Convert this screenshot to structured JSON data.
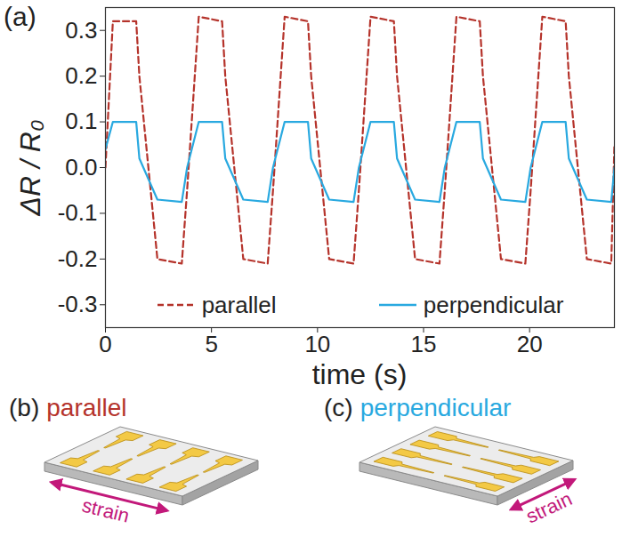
{
  "chart_data": {
    "type": "line",
    "panel": "(a)",
    "x_label": "time (s)",
    "y_label": "ΔR / R₀",
    "x": [
      0,
      0.35,
      1.45,
      1.6,
      2.45,
      3.6,
      3.85,
      4.4,
      5.5,
      5.65,
      6.5,
      7.65,
      7.9,
      8.45,
      9.55,
      9.7,
      10.55,
      11.7,
      11.95,
      12.5,
      13.6,
      13.75,
      14.6,
      15.75,
      16.0,
      16.55,
      17.65,
      17.8,
      18.65,
      19.8,
      20.05,
      20.6,
      21.7,
      21.85,
      22.7,
      23.85,
      24.0
    ],
    "series": [
      {
        "name": "parallel",
        "color": "#b5332b",
        "line_style": "dashed",
        "values": [
          0.0,
          0.32,
          0.32,
          0.2,
          -0.2,
          -0.21,
          -0.05,
          0.33,
          0.32,
          0.2,
          -0.2,
          -0.21,
          -0.05,
          0.33,
          0.32,
          0.2,
          -0.2,
          -0.21,
          -0.05,
          0.33,
          0.32,
          0.2,
          -0.2,
          -0.21,
          -0.05,
          0.33,
          0.32,
          0.2,
          -0.2,
          -0.21,
          -0.05,
          0.33,
          0.32,
          0.2,
          -0.2,
          -0.21,
          0.05
        ]
      },
      {
        "name": "perpendicular",
        "color": "#29a9e0",
        "line_style": "solid",
        "values": [
          0.04,
          0.1,
          0.1,
          0.02,
          -0.07,
          -0.075,
          0.0,
          0.1,
          0.1,
          0.02,
          -0.07,
          -0.075,
          0.0,
          0.1,
          0.1,
          0.02,
          -0.07,
          -0.075,
          0.0,
          0.1,
          0.1,
          0.02,
          -0.07,
          -0.075,
          0.0,
          0.1,
          0.1,
          0.02,
          -0.07,
          -0.075,
          0.0,
          0.1,
          0.1,
          0.02,
          -0.07,
          -0.075,
          0.0
        ]
      }
    ],
    "xlim": [
      0,
      24
    ],
    "xticks": [
      0,
      5,
      10,
      15,
      20
    ],
    "ylim": [
      -0.35,
      0.35
    ],
    "yticks": [
      -0.3,
      -0.2,
      -0.1,
      {
        "value": 0,
        "label": "0.0"
      },
      0.1,
      0.2,
      0.3
    ],
    "grid": false,
    "legend": "bottom"
  },
  "diagrams": [
    {
      "panel": "(b)",
      "label": "parallel",
      "label_color": "#b5332b",
      "arrow_label": "strain"
    },
    {
      "panel": "(c)",
      "label": "perpendicular",
      "label_color": "#29a9e0",
      "arrow_label": "strain"
    }
  ]
}
